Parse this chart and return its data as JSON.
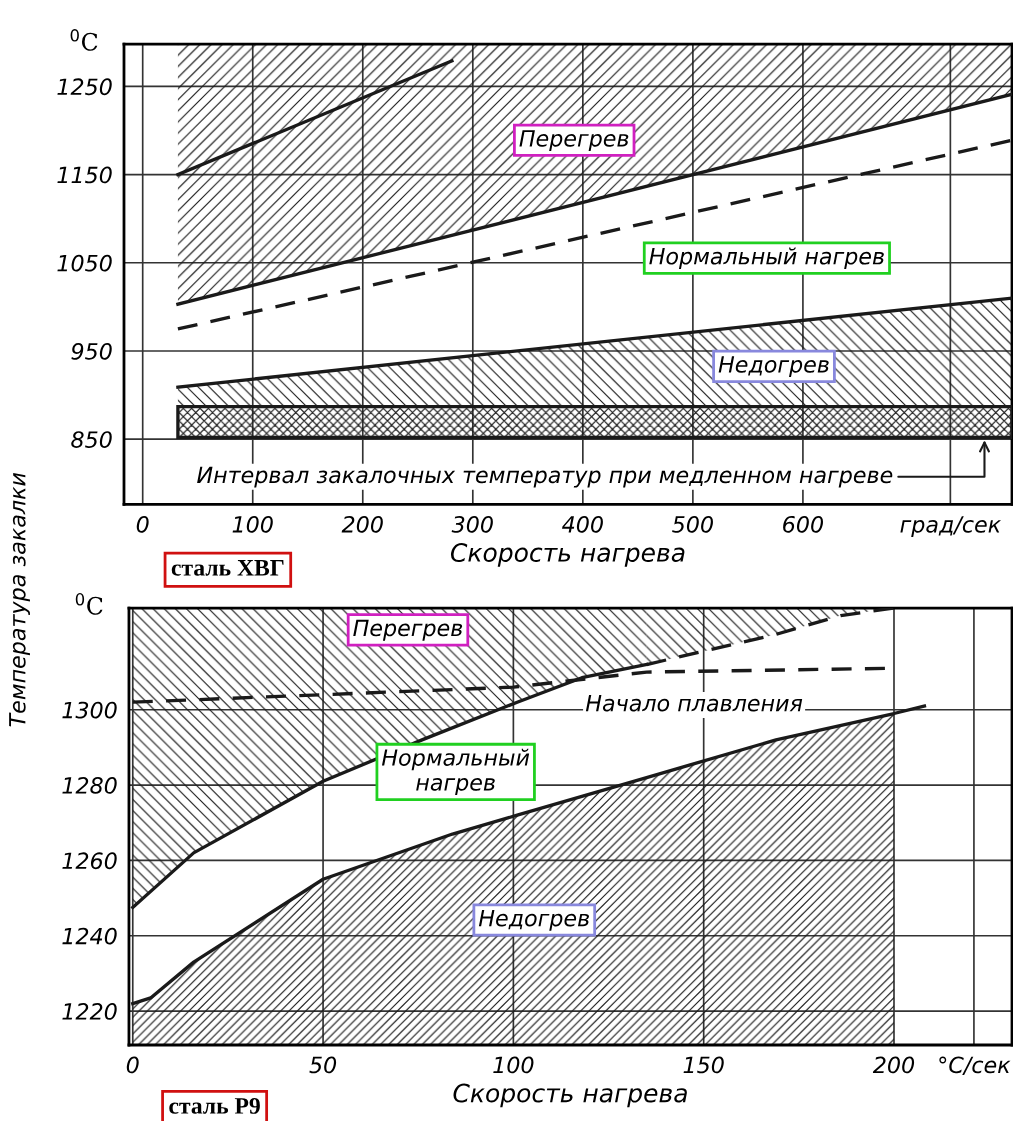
{
  "chart_data": [
    {
      "type": "line",
      "ylabel": "$^{0}$C",
      "xlabel": "Скорость нагрева",
      "xlim": [
        -17,
        790
      ],
      "ylim": [
        776,
        1298
      ],
      "xticks": [
        0,
        100,
        200,
        300,
        400,
        500,
        600,
        {
          "value": 734,
          "label": "град/сек"
        }
      ],
      "yticks": [
        850,
        950,
        1050,
        1150,
        1250
      ],
      "grid": true,
      "legend": false,
      "series": [
        {
          "color": "#1a1a1a",
          "x": [
            32,
            790
          ],
          "values": [
            1003,
            1241
          ],
          "lower": [
            1003,
            1241
          ],
          "upper": [
            1298,
            1298
          ]
        },
        {
          "color": "#1a1a1a",
          "x": [
            32,
            790
          ],
          "values": [
            909,
            1010
          ],
          "lower": [
            887,
            887
          ],
          "upper": [
            909,
            1010
          ]
        },
        {
          "color": "#1a1a1a",
          "x": [
            32,
            281
          ],
          "values": [
            1150,
            1279
          ]
        },
        {
          "color": "#1a1a1a",
          "line_style": "dashed",
          "x": [
            32,
            790
          ],
          "values": [
            975,
            1189
          ]
        }
      ],
      "bands": [
        {
          "axis": "y",
          "from": 852,
          "to": 887,
          "color": "#1a1a1a"
        }
      ],
      "annotations": [
        "Температура закалки",
        "Перегрев",
        "Нормальный нагрев",
        "Недогрев",
        "Интервал закалочных температур при медленном нагреве",
        "сталь ХВГ"
      ]
    },
    {
      "type": "line",
      "ylabel": "$^{0}$C",
      "xlabel": "Скорость нагрева",
      "xlim": [
        -1,
        231
      ],
      "ylim": [
        1211,
        1327
      ],
      "xticks": [
        0,
        50,
        100,
        150,
        200,
        {
          "value": 221,
          "label": "°C/сек"
        }
      ],
      "yticks": [
        1220,
        1240,
        1260,
        1280,
        1300
      ],
      "grid": true,
      "legend": false,
      "series": [
        {
          "color": "#1a1a1a",
          "x": [
            0,
            16,
            50,
            76,
            101,
            118,
            135
          ],
          "values": [
            1247.5,
            1262,
            1281,
            1292,
            1302,
            1308.5,
            1312
          ],
          "lower": [
            1247.5,
            1262,
            1281,
            1292,
            1302,
            1308.5,
            1312
          ],
          "upper": [
            1327,
            1327,
            1327,
            1327,
            1327,
            1327,
            1327
          ]
        },
        {
          "color": "#1a1a1a",
          "line_style": "dashed",
          "x": [
            135,
            169,
            186,
            200
          ],
          "values": [
            1312,
            1320,
            1325,
            1327
          ],
          "lower": [
            1312,
            1320,
            1325,
            1327
          ],
          "upper": [
            1327,
            1327,
            1327,
            1327
          ]
        },
        {
          "color": "#1a1a1a",
          "x": [
            0,
            4.7,
            16,
            50,
            84,
            101,
            135,
            169,
            200,
            208
          ],
          "values": [
            1222,
            1223.5,
            1233,
            1255,
            1267,
            1272,
            1282,
            1292,
            1299,
            1301
          ],
          "lower": [
            1211,
            1211,
            1211,
            1211,
            1211,
            1211,
            1211,
            1211,
            1211,
            null
          ],
          "upper": [
            1222,
            1223.5,
            1233,
            1255,
            1267,
            1272,
            1282,
            1292,
            1299,
            null
          ]
        },
        {
          "color": "#1a1a1a",
          "line_style": "dashed",
          "x": [
            0,
            100,
            135,
            200
          ],
          "values": [
            1302,
            1306,
            1310,
            1311
          ]
        }
      ],
      "annotations": [
        "Перегрев",
        "Нормальный\nнагрев",
        "Недогрев",
        "Начало плавления",
        "сталь Р9"
      ]
    }
  ]
}
